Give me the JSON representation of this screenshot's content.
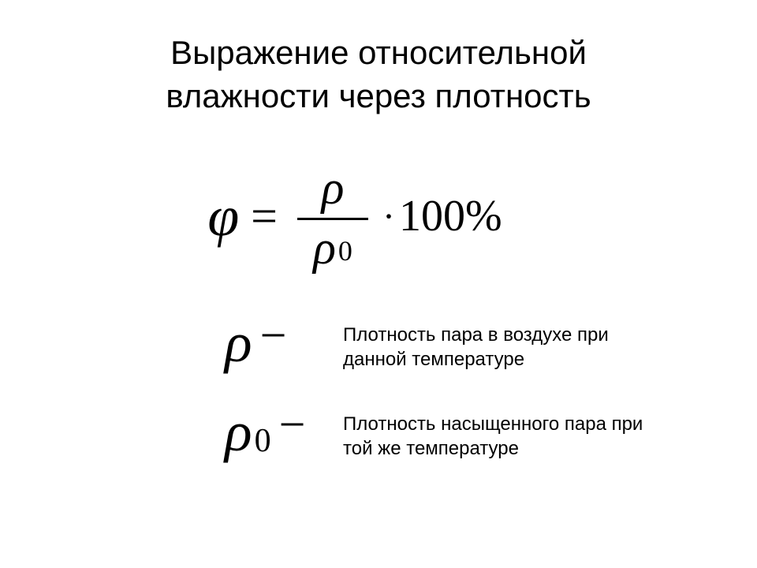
{
  "title": {
    "line1": "Выражение относительной",
    "line2": "влажности через плотность"
  },
  "formula": {
    "lhs": "φ",
    "equals": "=",
    "numerator": "ρ",
    "denominator_base": "ρ",
    "denominator_sub": "0",
    "dot": "·",
    "constant": "100%"
  },
  "definitions": [
    {
      "symbol": "ρ",
      "subscript": "",
      "dash": "−",
      "text": "Плотность пара в воздухе при данной температуре"
    },
    {
      "symbol": "ρ",
      "subscript": "0",
      "dash": "−",
      "text": "Плотность насыщенного пара при той же температуре"
    }
  ],
  "style": {
    "background_color": "#ffffff",
    "text_color": "#000000",
    "title_fontsize": 42,
    "formula_fontsize": 60,
    "phi_fontsize": 72,
    "definition_fontsize": 24,
    "font_family_formula": "Times New Roman",
    "font_family_text": "Arial"
  }
}
